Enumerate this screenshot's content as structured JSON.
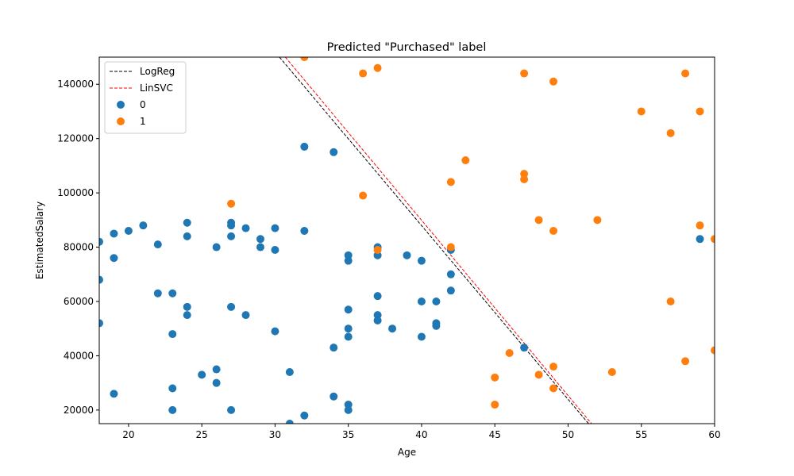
{
  "chart_data": {
    "type": "scatter",
    "title": "Predicted \"Purchased\" label",
    "xlabel": "Age",
    "ylabel": "EstimatedSalary",
    "xlim": [
      18,
      60
    ],
    "ylim": [
      15000,
      150000
    ],
    "xticks": [
      20,
      25,
      30,
      35,
      40,
      45,
      50,
      55,
      60
    ],
    "yticks": [
      20000,
      40000,
      60000,
      80000,
      100000,
      120000,
      140000
    ],
    "grid": false,
    "legend_position": "top-left",
    "lines": [
      {
        "name": "LogReg",
        "color": "#000000",
        "style": "dashed",
        "x": [
          30.3,
          51.4
        ],
        "y": [
          150000,
          15000
        ]
      },
      {
        "name": "LinSVC",
        "color": "#ff0000",
        "style": "dashed",
        "x": [
          30.7,
          51.6
        ],
        "y": [
          150000,
          15000
        ]
      }
    ],
    "series": [
      {
        "name": "0",
        "color": "#1f77b4",
        "points": [
          [
            18,
            82000
          ],
          [
            18,
            68000
          ],
          [
            18,
            52000
          ],
          [
            19,
            85000
          ],
          [
            19,
            76000
          ],
          [
            19,
            26000
          ],
          [
            20,
            86000
          ],
          [
            21,
            88000
          ],
          [
            22,
            81000
          ],
          [
            22,
            63000
          ],
          [
            23,
            63000
          ],
          [
            23,
            48000
          ],
          [
            23,
            28000
          ],
          [
            23,
            20000
          ],
          [
            24,
            89000
          ],
          [
            24,
            84000
          ],
          [
            24,
            58000
          ],
          [
            24,
            55000
          ],
          [
            25,
            33000
          ],
          [
            26,
            80000
          ],
          [
            26,
            35000
          ],
          [
            26,
            30000
          ],
          [
            27,
            89000
          ],
          [
            27,
            88000
          ],
          [
            27,
            84000
          ],
          [
            27,
            58000
          ],
          [
            27,
            20000
          ],
          [
            28,
            87000
          ],
          [
            28,
            55000
          ],
          [
            29,
            83000
          ],
          [
            29,
            80000
          ],
          [
            30,
            87000
          ],
          [
            30,
            79000
          ],
          [
            30,
            49000
          ],
          [
            31,
            34000
          ],
          [
            31,
            15000
          ],
          [
            32,
            117000
          ],
          [
            32,
            86000
          ],
          [
            32,
            18000
          ],
          [
            34,
            115000
          ],
          [
            34,
            43000
          ],
          [
            34,
            25000
          ],
          [
            35,
            77000
          ],
          [
            35,
            75000
          ],
          [
            35,
            57000
          ],
          [
            35,
            50000
          ],
          [
            35,
            47000
          ],
          [
            35,
            22000
          ],
          [
            35,
            20000
          ],
          [
            37,
            80000
          ],
          [
            37,
            77000
          ],
          [
            37,
            62000
          ],
          [
            37,
            55000
          ],
          [
            37,
            53000
          ],
          [
            38,
            50000
          ],
          [
            39,
            77000
          ],
          [
            40,
            75000
          ],
          [
            40,
            60000
          ],
          [
            40,
            47000
          ],
          [
            41,
            60000
          ],
          [
            41,
            52000
          ],
          [
            41,
            51000
          ],
          [
            42,
            79000
          ],
          [
            42,
            70000
          ],
          [
            42,
            64000
          ],
          [
            47,
            43000
          ],
          [
            59,
            83000
          ]
        ]
      },
      {
        "name": "1",
        "color": "#ff7f0e",
        "points": [
          [
            27,
            96000
          ],
          [
            32,
            150000
          ],
          [
            36,
            144000
          ],
          [
            36,
            99000
          ],
          [
            37,
            146000
          ],
          [
            37,
            79000
          ],
          [
            42,
            104000
          ],
          [
            42,
            80000
          ],
          [
            43,
            112000
          ],
          [
            45,
            32000
          ],
          [
            45,
            22000
          ],
          [
            46,
            41000
          ],
          [
            47,
            144000
          ],
          [
            47,
            107000
          ],
          [
            47,
            105000
          ],
          [
            48,
            90000
          ],
          [
            48,
            33000
          ],
          [
            49,
            141000
          ],
          [
            49,
            86000
          ],
          [
            49,
            36000
          ],
          [
            49,
            28000
          ],
          [
            52,
            90000
          ],
          [
            53,
            34000
          ],
          [
            55,
            130000
          ],
          [
            57,
            122000
          ],
          [
            57,
            60000
          ],
          [
            58,
            144000
          ],
          [
            58,
            38000
          ],
          [
            59,
            130000
          ],
          [
            59,
            88000
          ],
          [
            60,
            83000
          ],
          [
            60,
            42000
          ]
        ]
      }
    ]
  }
}
